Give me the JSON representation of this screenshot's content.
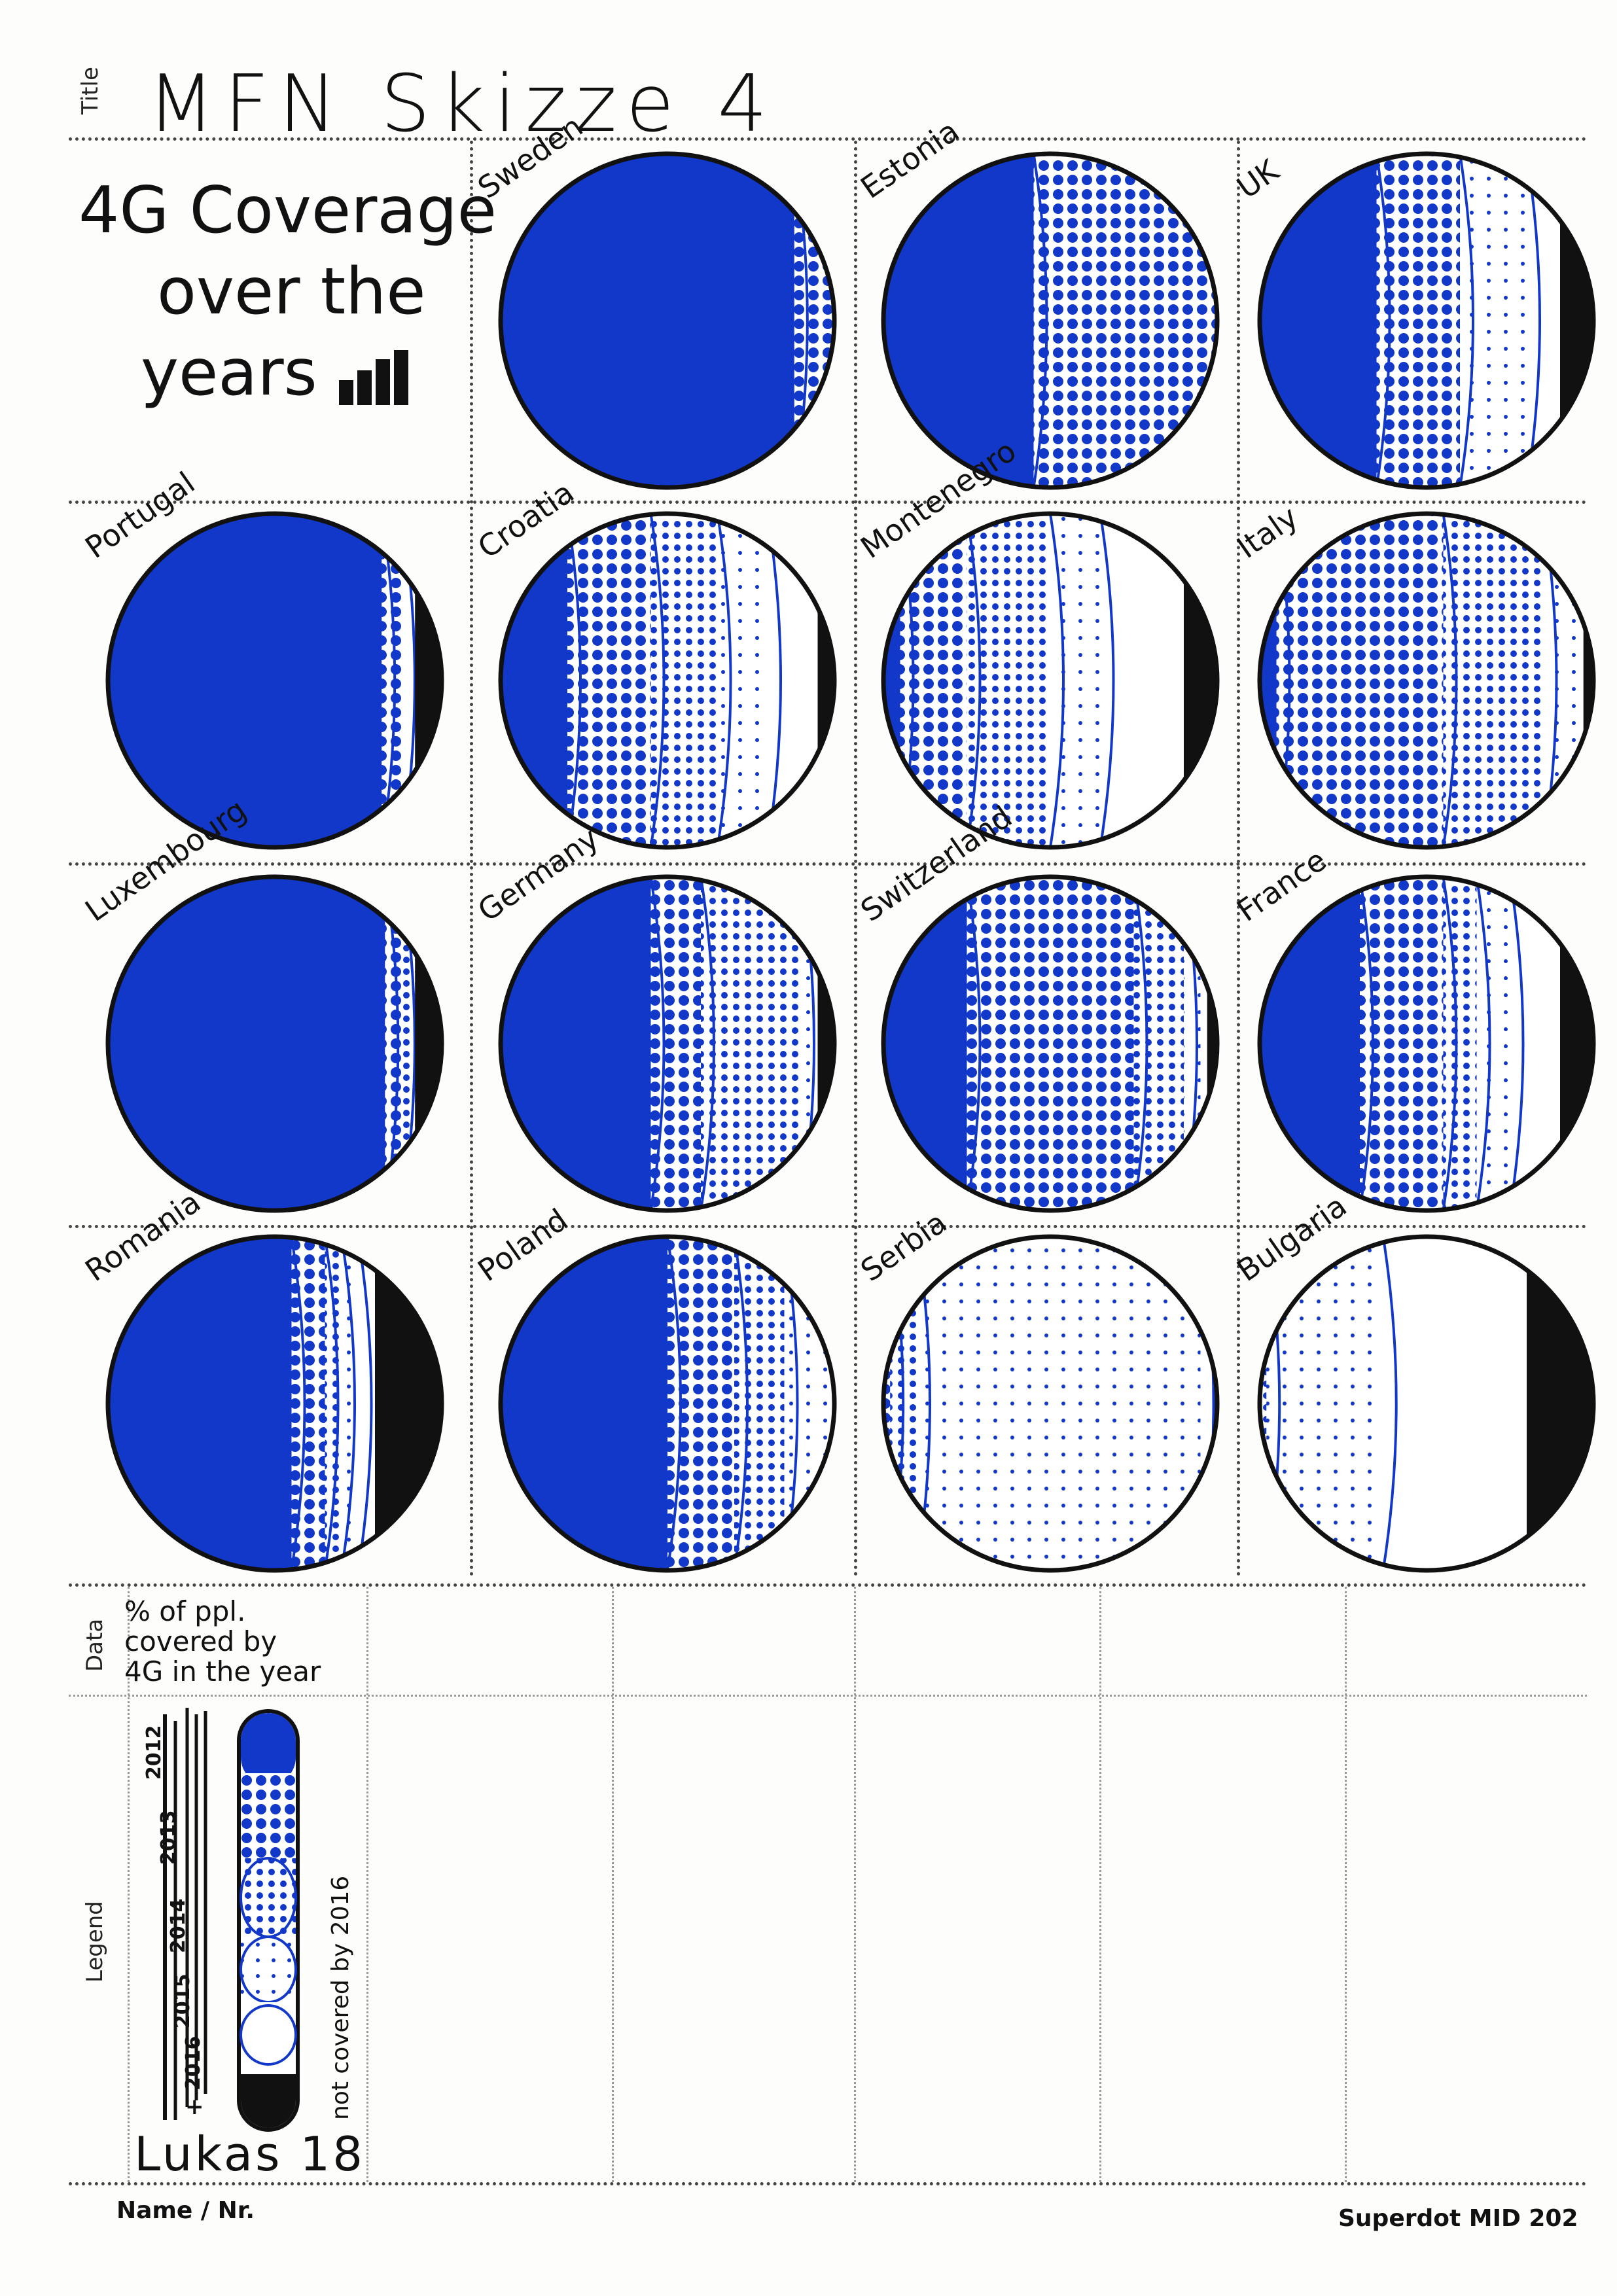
{
  "header": {
    "title_label": "Title",
    "title": "MFN Skizze 4"
  },
  "headline": {
    "line1": "4G Coverage",
    "line2": "over the",
    "line3": "years"
  },
  "countries": [
    "Sweden",
    "Estonia",
    "UK",
    "Portugal",
    "Croatia",
    "Montenegro",
    "Italy",
    "Luxembourg",
    "Germany",
    "Switzerland",
    "France",
    "Romania",
    "Poland",
    "Serbia",
    "Bulgaria"
  ],
  "data_section": {
    "label": "Data",
    "text_line1": "% of ppl.",
    "text_line2": "covered by",
    "text_line3": "4G in the year"
  },
  "legend_section": {
    "label": "Legend",
    "years": [
      "2012",
      "2013",
      "2014",
      "2015",
      "2016"
    ],
    "plus": "+",
    "not_covered": "not covered by 2016"
  },
  "signature": "Lukas 18",
  "footer": {
    "name_label": "Name / Nr.",
    "brand": "Superdot MID 202"
  },
  "colors": {
    "ink_blue": "#1238c9",
    "ink_black": "#111111",
    "paper": "#fdfdfb"
  }
}
